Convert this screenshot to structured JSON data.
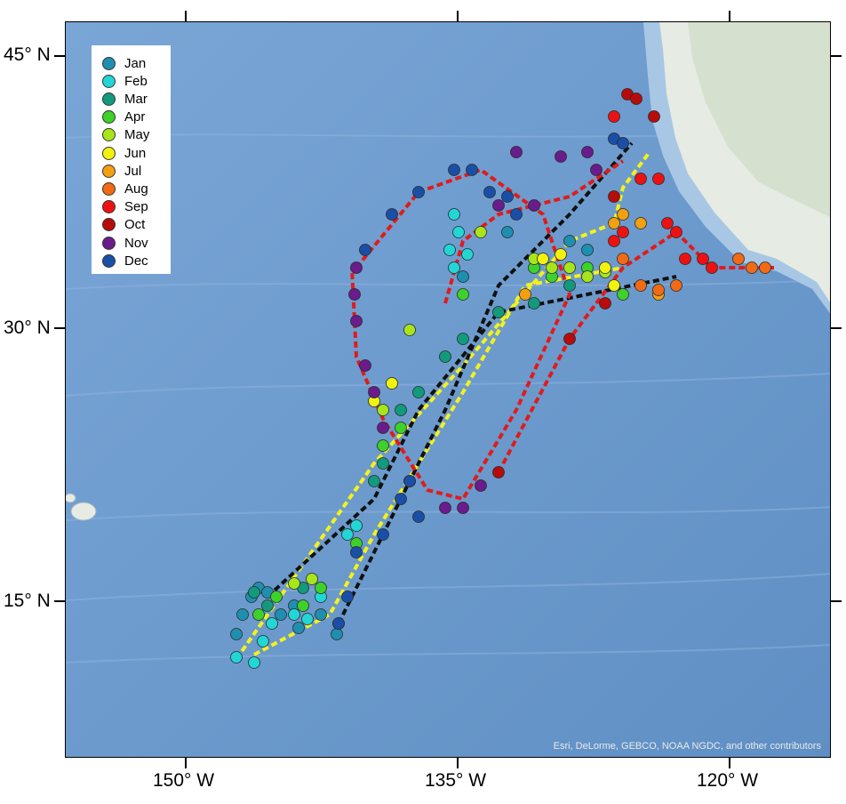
{
  "axes": {
    "lat_labels": [
      "45° N",
      "30° N",
      "15° N"
    ],
    "lon_labels": [
      "150° W",
      "135° W",
      "120° W"
    ]
  },
  "legend": {
    "items": [
      {
        "label": "Jan",
        "color": "#1f8fb0"
      },
      {
        "label": "Feb",
        "color": "#22d6d6"
      },
      {
        "label": "Mar",
        "color": "#129a7c"
      },
      {
        "label": "Apr",
        "color": "#3dd12a"
      },
      {
        "label": "May",
        "color": "#a6e61a"
      },
      {
        "label": "Jun",
        "color": "#f2f20f"
      },
      {
        "label": "Jul",
        "color": "#f2a00f"
      },
      {
        "label": "Aug",
        "color": "#f26a14"
      },
      {
        "label": "Sep",
        "color": "#ee1111"
      },
      {
        "label": "Oct",
        "color": "#b80b0b"
      },
      {
        "label": "Nov",
        "color": "#6a1b8c"
      },
      {
        "label": "Dec",
        "color": "#1a4fa8"
      }
    ]
  },
  "attribution": "Esri, DeLorme, GEBCO, NOAA NGDC, and other contributors",
  "colors": {
    "ocean": "#6f9ccf",
    "land": "#e6ebe3",
    "track_black": "#111111",
    "track_red": "#e01b1b",
    "track_yellow": "#f4f21a"
  }
}
